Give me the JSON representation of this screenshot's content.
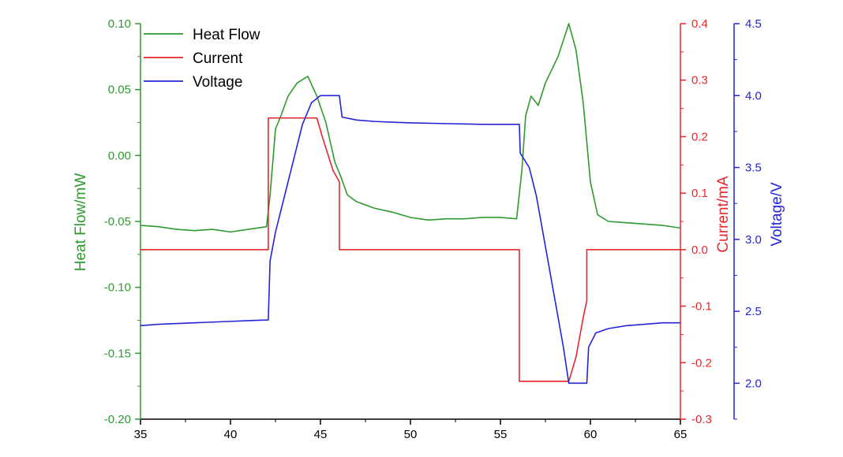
{
  "chart_data": {
    "type": "line",
    "x_axis": {
      "range": [
        35,
        65
      ],
      "ticks": [
        35,
        40,
        45,
        50,
        55,
        60,
        65
      ],
      "tick_labels": [
        "35",
        "40",
        "45",
        "50",
        "55",
        "60",
        "65"
      ],
      "title": ""
    },
    "y_axes": [
      {
        "id": "heat",
        "title": "Heat Flow/mW",
        "color": "#2e9a2e",
        "position": "left",
        "range": [
          -0.2,
          0.1
        ],
        "ticks": [
          0.1,
          0.05,
          0.0,
          -0.05,
          -0.1,
          -0.15,
          -0.2
        ],
        "tick_labels": [
          "0.10",
          "0.05",
          "0.00",
          "-0.05",
          "-0.10",
          "-0.15",
          "-0.20"
        ]
      },
      {
        "id": "current",
        "title": "Current/mA",
        "color": "#e8262a",
        "position": "right",
        "range": [
          -0.3,
          0.4
        ],
        "ticks": [
          0.4,
          0.3,
          0.2,
          0.1,
          0.0,
          -0.1,
          -0.2,
          -0.3
        ],
        "tick_labels": [
          "0.4",
          "0.3",
          "0.2",
          "0.1",
          "0.0",
          "-0.1",
          "-0.2",
          "-0.3"
        ]
      },
      {
        "id": "voltage",
        "title": "Voltage/V",
        "color": "#2424d6",
        "position": "right-outer",
        "range": [
          1.75,
          4.5
        ],
        "ticks": [
          4.5,
          4.0,
          3.5,
          3.0,
          2.5,
          2.0
        ],
        "tick_labels": [
          "4.5",
          "4.0",
          "3.5",
          "3.0",
          "2.5",
          "2.0"
        ]
      }
    ],
    "series": [
      {
        "name": "Heat Flow",
        "axis": "heat",
        "color": "#2e9a2e",
        "points": [
          [
            35,
            -0.053
          ],
          [
            36,
            -0.054
          ],
          [
            37,
            -0.056
          ],
          [
            38,
            -0.057
          ],
          [
            39,
            -0.056
          ],
          [
            40,
            -0.058
          ],
          [
            41,
            -0.056
          ],
          [
            42,
            -0.054
          ],
          [
            42.2,
            -0.03
          ],
          [
            42.5,
            0.02
          ],
          [
            42.8,
            0.03
          ],
          [
            43.2,
            0.045
          ],
          [
            43.7,
            0.055
          ],
          [
            44.3,
            0.06
          ],
          [
            44.8,
            0.045
          ],
          [
            45.3,
            0.025
          ],
          [
            45.8,
            -0.005
          ],
          [
            46.1,
            -0.015
          ],
          [
            46.5,
            -0.03
          ],
          [
            47,
            -0.035
          ],
          [
            48,
            -0.04
          ],
          [
            49,
            -0.043
          ],
          [
            50,
            -0.047
          ],
          [
            51,
            -0.049
          ],
          [
            52,
            -0.048
          ],
          [
            53,
            -0.048
          ],
          [
            54,
            -0.047
          ],
          [
            55,
            -0.047
          ],
          [
            55.9,
            -0.048
          ],
          [
            56.2,
            -0.01
          ],
          [
            56.4,
            0.03
          ],
          [
            56.7,
            0.045
          ],
          [
            57.1,
            0.038
          ],
          [
            57.5,
            0.055
          ],
          [
            58.2,
            0.075
          ],
          [
            58.8,
            0.1
          ],
          [
            59.2,
            0.08
          ],
          [
            59.6,
            0.04
          ],
          [
            60,
            -0.02
          ],
          [
            60.4,
            -0.045
          ],
          [
            61,
            -0.05
          ],
          [
            62,
            -0.051
          ],
          [
            63,
            -0.052
          ],
          [
            64,
            -0.053
          ],
          [
            65,
            -0.055
          ]
        ]
      },
      {
        "name": "Current",
        "axis": "current",
        "color": "#e8262a",
        "points": [
          [
            35,
            0.0
          ],
          [
            42.1,
            0.0
          ],
          [
            42.1,
            0.233
          ],
          [
            44.8,
            0.233
          ],
          [
            45.1,
            0.2
          ],
          [
            45.7,
            0.14
          ],
          [
            46.05,
            0.12
          ],
          [
            46.05,
            0.0
          ],
          [
            56.05,
            0.0
          ],
          [
            56.05,
            -0.233
          ],
          [
            58.8,
            -0.233
          ],
          [
            59.2,
            -0.19
          ],
          [
            59.6,
            -0.12
          ],
          [
            59.8,
            -0.09
          ],
          [
            59.8,
            0.0
          ],
          [
            65,
            0.0
          ]
        ]
      },
      {
        "name": "Voltage",
        "axis": "voltage",
        "color": "#2424d6",
        "points": [
          [
            35,
            2.4
          ],
          [
            36,
            2.41
          ],
          [
            38,
            2.42
          ],
          [
            40,
            2.43
          ],
          [
            41,
            2.435
          ],
          [
            42.1,
            2.44
          ],
          [
            42.2,
            2.85
          ],
          [
            42.5,
            3.05
          ],
          [
            43,
            3.3
          ],
          [
            43.5,
            3.55
          ],
          [
            44,
            3.8
          ],
          [
            44.5,
            3.95
          ],
          [
            45,
            4.0
          ],
          [
            46.05,
            4.0
          ],
          [
            46.2,
            3.85
          ],
          [
            47,
            3.83
          ],
          [
            48,
            3.82
          ],
          [
            50,
            3.81
          ],
          [
            52,
            3.805
          ],
          [
            54,
            3.8
          ],
          [
            56.05,
            3.8
          ],
          [
            56.1,
            3.6
          ],
          [
            56.6,
            3.5
          ],
          [
            57,
            3.3
          ],
          [
            57.5,
            2.95
          ],
          [
            58,
            2.6
          ],
          [
            58.5,
            2.25
          ],
          [
            58.8,
            2.0
          ],
          [
            59.8,
            2.0
          ],
          [
            59.9,
            2.25
          ],
          [
            60.3,
            2.35
          ],
          [
            61,
            2.38
          ],
          [
            62,
            2.4
          ],
          [
            63,
            2.41
          ],
          [
            64,
            2.42
          ],
          [
            65,
            2.42
          ]
        ]
      }
    ],
    "legend": {
      "placement": "top-left",
      "entries": [
        "Heat Flow",
        "Current",
        "Voltage"
      ]
    },
    "grid": false
  }
}
